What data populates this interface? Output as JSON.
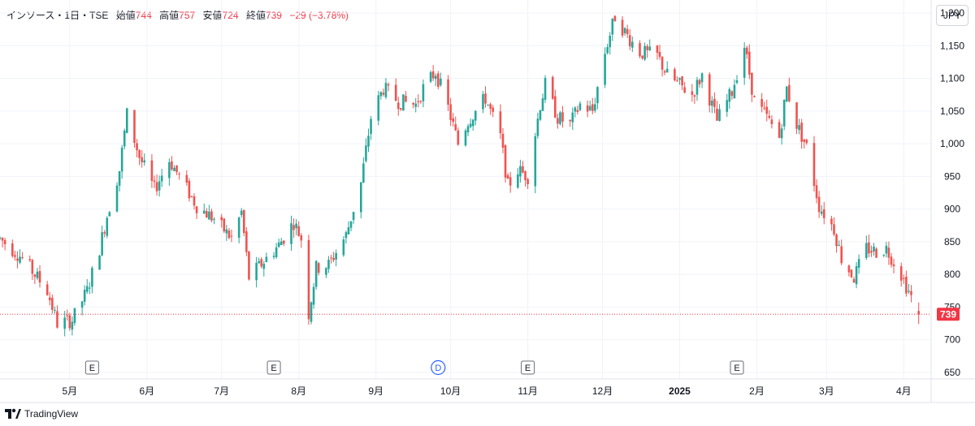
{
  "legend": {
    "symbol": "インソース・1日・TSE",
    "open_label": "始値",
    "open": "744",
    "high_label": "高値",
    "high": "757",
    "low_label": "安値",
    "low": "724",
    "close_label": "終値",
    "close": "739",
    "change": "−29 (−3.78%)"
  },
  "currency": "JPY",
  "brand": "TradingView",
  "last_price_label": "739",
  "colors": {
    "up": "#26a69a",
    "down": "#ef5350",
    "grid": "#f0f3fa",
    "axis_text": "#131722",
    "last_price": "#f23645"
  },
  "chart_data": {
    "type": "candlestick",
    "ylim": [
      640,
      1220
    ],
    "y_ticks": [
      650,
      700,
      750,
      800,
      850,
      900,
      950,
      1000,
      1050,
      1100,
      1150,
      1200
    ],
    "y_tick_labels": [
      "650",
      "700",
      "750",
      "800",
      "850",
      "900",
      "950",
      "1,000",
      "1,050",
      "1,100",
      "1,150",
      "1,200"
    ],
    "x_range": [
      "2024-04-03",
      "2025-04-12"
    ],
    "x_ticks": [
      {
        "date": "2024-05-01",
        "label": "5月"
      },
      {
        "date": "2024-06-01",
        "label": "6月"
      },
      {
        "date": "2024-07-01",
        "label": "7月"
      },
      {
        "date": "2024-08-01",
        "label": "8月"
      },
      {
        "date": "2024-09-01",
        "label": "9月"
      },
      {
        "date": "2024-10-01",
        "label": "10月"
      },
      {
        "date": "2024-11-01",
        "label": "11月"
      },
      {
        "date": "2024-12-01",
        "label": "12月"
      },
      {
        "date": "2025-01-01",
        "label": "2025"
      },
      {
        "date": "2025-02-01",
        "label": "2月"
      },
      {
        "date": "2025-03-01",
        "label": "3月"
      },
      {
        "date": "2025-04-01",
        "label": "4月"
      }
    ],
    "events": [
      {
        "date": "2024-05-10",
        "label": "E",
        "kind": "earnings"
      },
      {
        "date": "2024-07-22",
        "label": "E",
        "kind": "earnings"
      },
      {
        "date": "2024-09-26",
        "label": "D",
        "kind": "dividend"
      },
      {
        "date": "2024-11-01",
        "label": "E",
        "kind": "earnings"
      },
      {
        "date": "2025-01-24",
        "label": "E",
        "kind": "earnings"
      }
    ],
    "last_price": 739,
    "waypoints": [
      [
        "2024-04-03",
        855
      ],
      [
        "2024-04-12",
        825
      ],
      [
        "2024-04-22",
        775
      ],
      [
        "2024-04-26",
        725
      ],
      [
        "2024-05-02",
        730
      ],
      [
        "2024-05-08",
        775
      ],
      [
        "2024-05-13",
        840
      ],
      [
        "2024-05-16",
        890
      ],
      [
        "2024-05-21",
        960
      ],
      [
        "2024-05-24",
        1045
      ],
      [
        "2024-05-29",
        980
      ],
      [
        "2024-06-04",
        930
      ],
      [
        "2024-06-10",
        975
      ],
      [
        "2024-06-14",
        950
      ],
      [
        "2024-06-21",
        905
      ],
      [
        "2024-06-28",
        885
      ],
      [
        "2024-07-05",
        855
      ],
      [
        "2024-07-09",
        895
      ],
      [
        "2024-07-12",
        795
      ],
      [
        "2024-07-18",
        820
      ],
      [
        "2024-07-24",
        845
      ],
      [
        "2024-07-30",
        880
      ],
      [
        "2024-08-02",
        855
      ],
      [
        "2024-08-05",
        740
      ],
      [
        "2024-08-08",
        810
      ],
      [
        "2024-08-13",
        815
      ],
      [
        "2024-08-20",
        860
      ],
      [
        "2024-08-26",
        940
      ],
      [
        "2024-08-30",
        1040
      ],
      [
        "2024-09-04",
        1085
      ],
      [
        "2024-09-10",
        1065
      ],
      [
        "2024-09-17",
        1060
      ],
      [
        "2024-09-20",
        1085
      ],
      [
        "2024-09-25",
        1110
      ],
      [
        "2024-09-30",
        1055
      ],
      [
        "2024-10-04",
        1000
      ],
      [
        "2024-10-08",
        1035
      ],
      [
        "2024-10-15",
        1070
      ],
      [
        "2024-10-21",
        1010
      ],
      [
        "2024-10-24",
        935
      ],
      [
        "2024-10-28",
        960
      ],
      [
        "2024-11-01",
        950
      ],
      [
        "2024-11-06",
        1060
      ],
      [
        "2024-11-08",
        1090
      ],
      [
        "2024-11-13",
        1040
      ],
      [
        "2024-11-18",
        1030
      ],
      [
        "2024-11-22",
        1060
      ],
      [
        "2024-11-27",
        1050
      ],
      [
        "2024-12-02",
        1140
      ],
      [
        "2024-12-06",
        1195
      ],
      [
        "2024-12-11",
        1165
      ],
      [
        "2024-12-16",
        1140
      ],
      [
        "2024-12-23",
        1135
      ],
      [
        "2024-12-27",
        1105
      ],
      [
        "2025-01-06",
        1075
      ],
      [
        "2025-01-10",
        1105
      ],
      [
        "2025-01-16",
        1035
      ],
      [
        "2025-01-22",
        1080
      ],
      [
        "2025-01-27",
        1150
      ],
      [
        "2025-01-31",
        1065
      ],
      [
        "2025-02-05",
        1040
      ],
      [
        "2025-02-10",
        1010
      ],
      [
        "2025-02-13",
        1085
      ],
      [
        "2025-02-17",
        1030
      ],
      [
        "2025-02-21",
        995
      ],
      [
        "2025-02-26",
        905
      ],
      [
        "2025-03-04",
        870
      ],
      [
        "2025-03-07",
        825
      ],
      [
        "2025-03-12",
        795
      ],
      [
        "2025-03-17",
        840
      ],
      [
        "2025-03-21",
        835
      ],
      [
        "2025-03-25",
        840
      ],
      [
        "2025-03-31",
        800
      ],
      [
        "2025-04-04",
        765
      ],
      [
        "2025-04-07",
        739
      ]
    ]
  }
}
